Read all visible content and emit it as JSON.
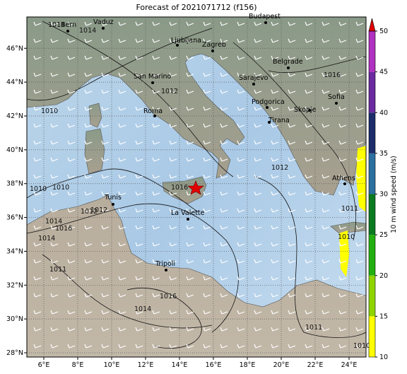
{
  "title": "Forecast of 2021071712 (f156)",
  "map": {
    "lonlim": [
      5,
      25
    ],
    "latlim": [
      27.75,
      47.85
    ],
    "lon_ticks": [
      {
        "value": 6,
        "label": "6°E"
      },
      {
        "value": 8,
        "label": "8°E"
      },
      {
        "value": 10,
        "label": "10°E"
      },
      {
        "value": 12,
        "label": "12°E"
      },
      {
        "value": 14,
        "label": "14°E"
      },
      {
        "value": 16,
        "label": "16°E"
      },
      {
        "value": 18,
        "label": "18°E"
      },
      {
        "value": 20,
        "label": "20°E"
      },
      {
        "value": 22,
        "label": "22°E"
      },
      {
        "value": 24,
        "label": "24°E"
      }
    ],
    "lat_ticks": [
      {
        "value": 28,
        "label": "28°N"
      },
      {
        "value": 30,
        "label": "30°N"
      },
      {
        "value": 32,
        "label": "32°N"
      },
      {
        "value": 34,
        "label": "34°N"
      },
      {
        "value": 36,
        "label": "36°N"
      },
      {
        "value": 38,
        "label": "38°N"
      },
      {
        "value": 40,
        "label": "40°N"
      },
      {
        "value": 42,
        "label": "42°N"
      },
      {
        "value": 44,
        "label": "44°N"
      },
      {
        "value": 46,
        "label": "46°N"
      }
    ],
    "grid": true,
    "cities": [
      "Bern",
      "Vaduz",
      "Ljubljana",
      "Zagreb",
      "Budapest",
      "Belgrade",
      "Sarajevo",
      "San Marino",
      "Roma",
      "Podgorica",
      "Skopje",
      "Sofia",
      "Tirana",
      "Athens",
      "Tunis",
      "La Valette",
      "Tripoli"
    ],
    "isobar_labels": [
      "1014",
      "1014",
      "1012",
      "1010",
      "1010",
      "1010",
      "1012",
      "1016",
      "1014",
      "1012",
      "1014",
      "1011",
      "1016",
      "1014",
      "1011",
      "1010",
      "1012",
      "1016",
      "1011",
      "1010",
      "1016"
    ]
  },
  "colorbar": {
    "label": "10 m wind speed (m/s)",
    "lim": [
      10,
      50
    ],
    "ticks": [
      10,
      15,
      20,
      25,
      30,
      35,
      40,
      45,
      50
    ],
    "colors": [
      "#ffff00",
      "#8fd400",
      "#22b010",
      "#0a7a20",
      "#2a6fa0",
      "#1c2c6a",
      "#6a2aa0",
      "#b030c0"
    ],
    "extend_color": "#e00000"
  }
}
